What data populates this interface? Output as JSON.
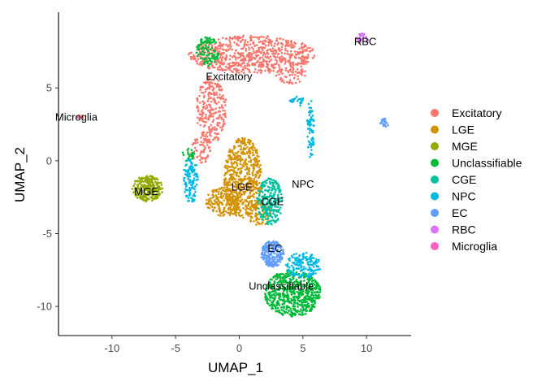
{
  "chart_data": {
    "type": "scatter",
    "title": "",
    "xlabel": "UMAP_1",
    "ylabel": "UMAP_2",
    "xlim": [
      -14.2,
      13.5
    ],
    "ylim": [
      -12.0,
      10.2
    ],
    "xticks": [
      -10,
      -5,
      0,
      5,
      10
    ],
    "yticks": [
      -10,
      -5,
      0,
      5
    ],
    "grid": false,
    "legend_position": "right",
    "series": [
      {
        "name": "Excitatory",
        "color": "#F8766D",
        "regions": [
          {
            "cx": 1.0,
            "cy": 7.3,
            "rx": 5.0,
            "ry": 1.3,
            "n": 700
          },
          {
            "cx": -2.2,
            "cy": 3.5,
            "rx": 1.2,
            "ry": 2.3,
            "n": 260
          },
          {
            "cx": -3.0,
            "cy": 0.8,
            "rx": 0.8,
            "ry": 1.0,
            "n": 70
          },
          {
            "cx": 4.1,
            "cy": 5.9,
            "rx": 1.2,
            "ry": 0.6,
            "n": 60
          },
          {
            "cx": -12.5,
            "cy": 3.0,
            "rx": 0.25,
            "ry": 0.15,
            "n": 8
          }
        ]
      },
      {
        "name": "LGE",
        "color": "#D39200",
        "regions": [
          {
            "cx": 0.3,
            "cy": -1.2,
            "rx": 1.5,
            "ry": 2.8,
            "n": 560
          },
          {
            "cx": -1.2,
            "cy": -2.8,
            "rx": 1.4,
            "ry": 1.0,
            "n": 200
          },
          {
            "cx": 1.6,
            "cy": -3.6,
            "rx": 0.9,
            "ry": 0.9,
            "n": 90
          }
        ]
      },
      {
        "name": "MGE",
        "color": "#93AA00",
        "regions": [
          {
            "cx": -7.2,
            "cy": -1.9,
            "rx": 1.2,
            "ry": 0.9,
            "n": 260
          }
        ]
      },
      {
        "name": "Unclassifiable",
        "color": "#00BA38",
        "regions": [
          {
            "cx": 4.2,
            "cy": -9.1,
            "rx": 2.2,
            "ry": 1.6,
            "n": 620
          },
          {
            "cx": -2.5,
            "cy": 7.5,
            "rx": 0.9,
            "ry": 1.0,
            "n": 110
          },
          {
            "cx": -4.0,
            "cy": 0.4,
            "rx": 0.5,
            "ry": 0.5,
            "n": 25
          }
        ]
      },
      {
        "name": "CGE",
        "color": "#00C19F",
        "regions": [
          {
            "cx": 2.4,
            "cy": -2.8,
            "rx": 1.0,
            "ry": 1.6,
            "n": 230
          }
        ]
      },
      {
        "name": "NPC",
        "color": "#00B9E3",
        "regions": [
          {
            "cx": 5.0,
            "cy": -7.2,
            "rx": 1.4,
            "ry": 0.9,
            "n": 170
          },
          {
            "cx": -3.8,
            "cy": -1.3,
            "rx": 0.6,
            "ry": 1.6,
            "n": 120
          },
          {
            "cx": 5.6,
            "cy": 2.2,
            "rx": 0.3,
            "ry": 2.0,
            "n": 70
          },
          {
            "cx": 4.5,
            "cy": 4.1,
            "rx": 0.6,
            "ry": 0.4,
            "n": 25
          }
        ]
      },
      {
        "name": "EC",
        "color": "#619CFF",
        "regions": [
          {
            "cx": 2.6,
            "cy": -6.4,
            "rx": 0.9,
            "ry": 0.9,
            "n": 220
          },
          {
            "cx": 11.4,
            "cy": 2.6,
            "rx": 0.4,
            "ry": 0.3,
            "n": 20
          }
        ]
      },
      {
        "name": "RBC",
        "color": "#DB72FB",
        "regions": [
          {
            "cx": 9.7,
            "cy": 8.4,
            "rx": 0.5,
            "ry": 0.35,
            "n": 25
          }
        ]
      },
      {
        "name": "Microglia",
        "color": "#FF61C3",
        "regions": [
          {
            "cx": -12.6,
            "cy": 3.0,
            "rx": 0.2,
            "ry": 0.1,
            "n": 5
          }
        ]
      }
    ],
    "cluster_labels": [
      {
        "text": "Excitatory",
        "x": -0.8,
        "y": 5.8
      },
      {
        "text": "Microglia",
        "x": -12.8,
        "y": 3.0
      },
      {
        "text": "RBC",
        "x": 9.9,
        "y": 8.2
      },
      {
        "text": "LGE",
        "x": 0.2,
        "y": -1.8
      },
      {
        "text": "NPC",
        "x": 5.0,
        "y": -1.6
      },
      {
        "text": "MGE",
        "x": -7.3,
        "y": -2.1
      },
      {
        "text": "CGE",
        "x": 2.6,
        "y": -2.8
      },
      {
        "text": "EC",
        "x": 2.8,
        "y": -6.0
      },
      {
        "text": "Unclassifiable",
        "x": 3.3,
        "y": -8.6
      }
    ]
  }
}
